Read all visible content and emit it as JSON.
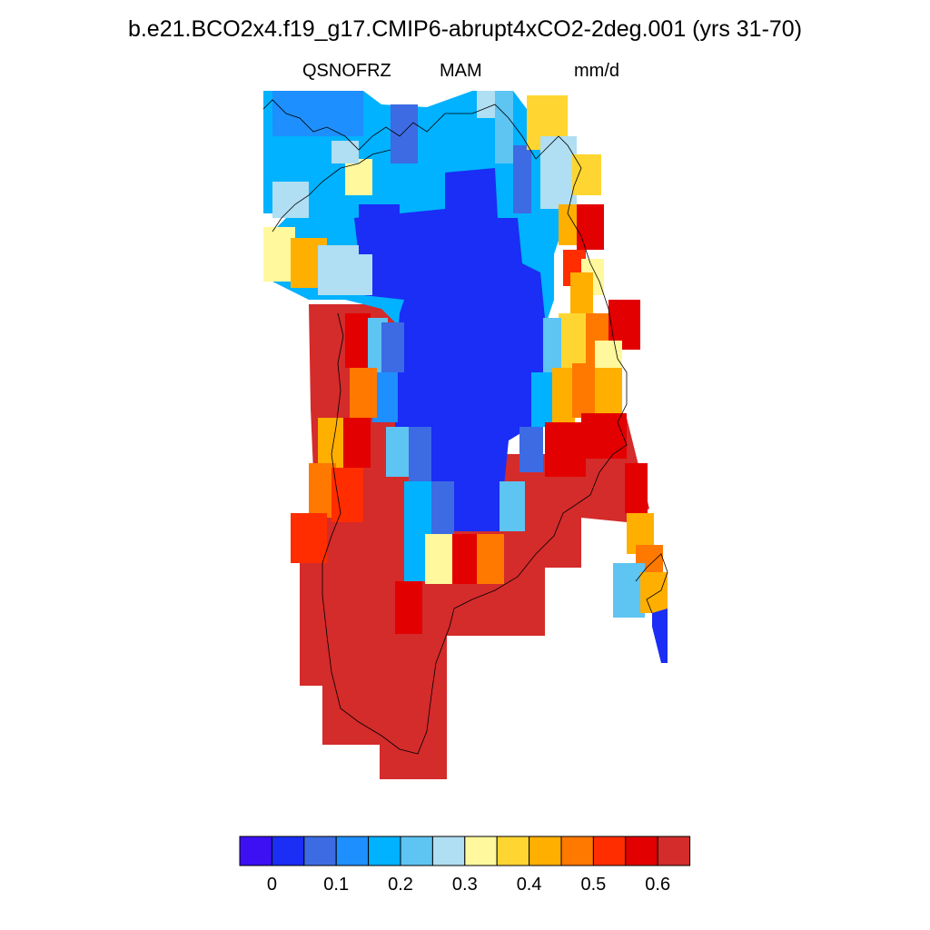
{
  "title": "b.e21.BCO2x4.f19_g17.CMIP6-abrupt4xCO2-2deg.001 (yrs 31-70)",
  "subtitle": {
    "variable": "QSNOFRZ",
    "season": "MAM",
    "units": "mm/d"
  },
  "colorbar": {
    "colors": [
      "#3d10f4",
      "#1a2ef5",
      "#3d6be3",
      "#1e8fff",
      "#00b2ff",
      "#5ec4f2",
      "#b0def2",
      "#fff89c",
      "#ffd631",
      "#ffaf00",
      "#ff7800",
      "#ff2d00",
      "#e30000",
      "#d42b2b"
    ],
    "tick_labels": [
      "0",
      "0.1",
      "0.2",
      "0.3",
      "0.4",
      "0.5",
      "0.6"
    ]
  },
  "map_colors": {
    "deep_blue": "#1a2ef5",
    "dark_red": "#d42b2b"
  }
}
